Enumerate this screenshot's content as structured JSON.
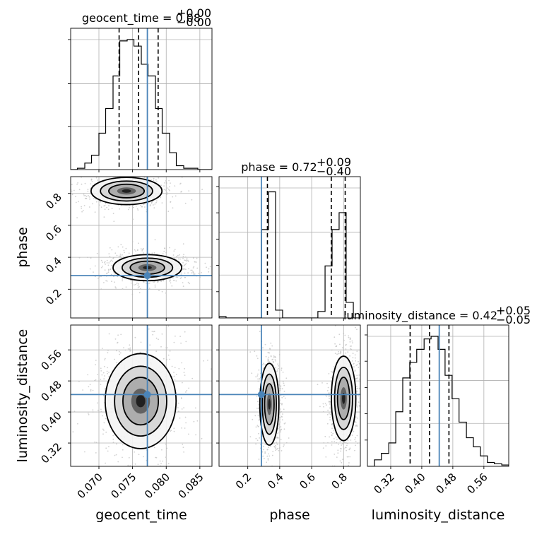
{
  "parameters": [
    "geocent_time",
    "phase",
    "luminosity_distance"
  ],
  "titles": {
    "geocent_time": {
      "name": "geocent_time",
      "median": "0.08",
      "plus": "+0.00",
      "minus": "−0.00"
    },
    "phase": {
      "name": "phase",
      "median": "0.72",
      "plus": "+0.09",
      "minus": "−0.40"
    },
    "luminosity_distance": {
      "name": "luminosity_distance",
      "median": "0.42",
      "plus": "+0.05",
      "minus": "−0.05"
    }
  },
  "xlabels": {
    "geocent_time": "geocent_time",
    "phase": "phase",
    "luminosity_distance": "luminosity_distance"
  },
  "ylabels": {
    "phase": "phase",
    "luminosity_distance": "luminosity_distance"
  },
  "colors": {
    "truth": "#4a84b8",
    "line": "#000000",
    "grid": "#b0b0b0"
  },
  "chart_data": {
    "type": "corner",
    "ranges": {
      "geocent_time": [
        0.0658,
        0.0868
      ],
      "phase": [
        0.02,
        0.905
      ],
      "luminosity_distance": [
        0.26,
        0.624
      ]
    },
    "ticks": {
      "geocent_time": [
        0.07,
        0.075,
        0.08,
        0.085
      ],
      "phase": [
        0.2,
        0.4,
        0.6,
        0.8
      ],
      "luminosity_distance": [
        0.32,
        0.4,
        0.48,
        0.56
      ]
    },
    "tick_labels": {
      "geocent_time": [
        "0.070",
        "0.075",
        "0.080",
        "0.085"
      ],
      "phase": [
        "0.2",
        "0.4",
        "0.6",
        "0.8"
      ],
      "luminosity_distance": [
        "0.32",
        "0.40",
        "0.48",
        "0.56"
      ]
    },
    "truths": {
      "geocent_time": 0.0772,
      "phase": 0.285,
      "luminosity_distance": 0.445
    },
    "quantiles": {
      "geocent_time": [
        0.073,
        0.0759,
        0.0788
      ],
      "phase": [
        0.323,
        0.723,
        0.81
      ],
      "luminosity_distance": [
        0.37,
        0.42,
        0.47
      ]
    },
    "histograms": {
      "geocent_time": {
        "edges": [
          0.0658,
          0.0668,
          0.0679,
          0.0689,
          0.07,
          0.071,
          0.0721,
          0.0731,
          0.0742,
          0.0752,
          0.0763,
          0.0773,
          0.0784,
          0.0794,
          0.0805,
          0.0815,
          0.0826,
          0.0836,
          0.0847,
          0.0857,
          0.0868
        ],
        "counts": [
          0.0,
          0.01,
          0.05,
          0.11,
          0.28,
          0.47,
          0.72,
          0.99,
          1.0,
          0.95,
          0.81,
          0.72,
          0.47,
          0.28,
          0.13,
          0.03,
          0.01,
          0.01,
          0.0,
          0.0
        ]
      },
      "phase": {
        "edges": [
          0.02,
          0.064,
          0.109,
          0.153,
          0.197,
          0.241,
          0.286,
          0.33,
          0.374,
          0.418,
          0.463,
          0.507,
          0.551,
          0.595,
          0.639,
          0.684,
          0.728,
          0.772,
          0.816,
          0.861,
          0.905
        ],
        "counts": [
          0.01,
          0.0,
          0.0,
          0.0,
          0.0,
          0.0,
          0.68,
          0.97,
          0.06,
          0.0,
          0.0,
          0.0,
          0.0,
          0.0,
          0.05,
          0.4,
          0.68,
          0.81,
          0.12,
          0.0
        ]
      },
      "luminosity_distance": {
        "edges": [
          0.26,
          0.278,
          0.296,
          0.315,
          0.333,
          0.351,
          0.369,
          0.387,
          0.406,
          0.424,
          0.442,
          0.46,
          0.478,
          0.496,
          0.515,
          0.533,
          0.551,
          0.569,
          0.587,
          0.606,
          0.624
        ],
        "counts": [
          0.0,
          0.05,
          0.1,
          0.18,
          0.42,
          0.68,
          0.8,
          0.9,
          0.98,
          1.0,
          0.9,
          0.7,
          0.52,
          0.34,
          0.22,
          0.15,
          0.08,
          0.03,
          0.02,
          0.01
        ]
      }
    },
    "panels_2d": [
      {
        "x": "geocent_time",
        "y": "phase",
        "modes": [
          {
            "cx": 0.0741,
            "cy": 0.815,
            "rx": 0.0031,
            "ry": 0.05
          },
          {
            "cx": 0.0772,
            "cy": 0.335,
            "rx": 0.003,
            "ry": 0.048
          }
        ]
      },
      {
        "x": "geocent_time",
        "y": "luminosity_distance",
        "modes": [
          {
            "cx": 0.0762,
            "cy": 0.428,
            "rx": 0.0031,
            "ry": 0.072
          }
        ]
      },
      {
        "x": "phase",
        "y": "luminosity_distance",
        "modes": [
          {
            "cx": 0.335,
            "cy": 0.42,
            "rx": 0.035,
            "ry": 0.062
          },
          {
            "cx": 0.8,
            "cy": 0.435,
            "rx": 0.045,
            "ry": 0.064
          }
        ]
      }
    ]
  }
}
